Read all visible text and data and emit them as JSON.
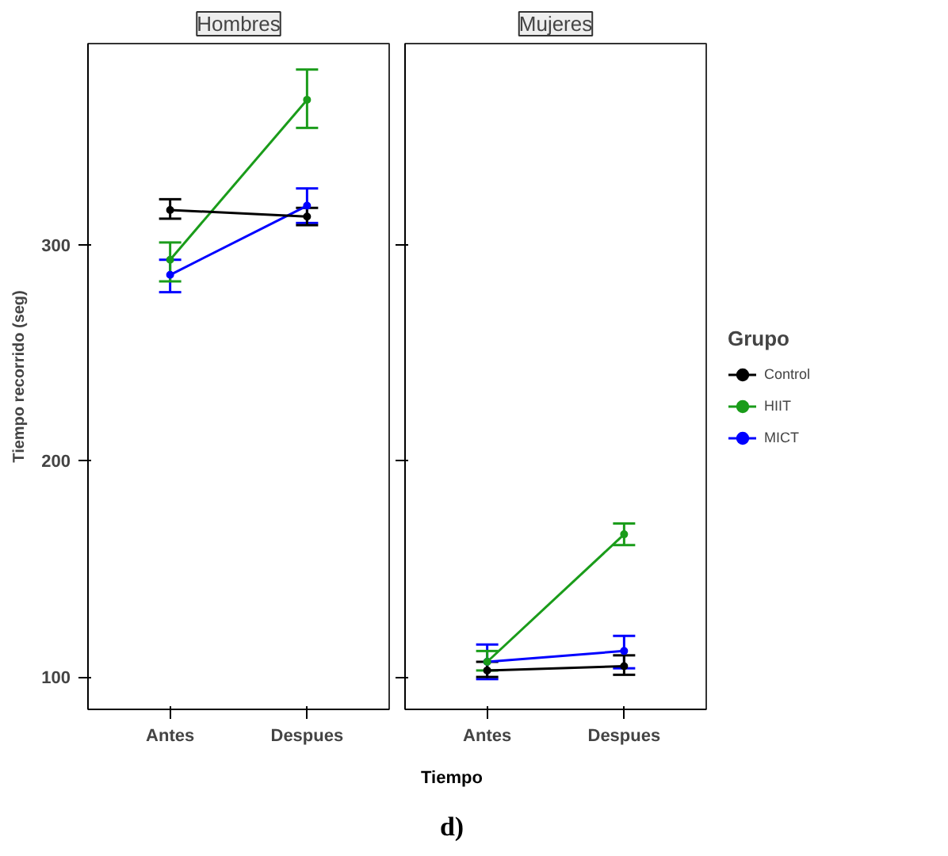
{
  "chart_data": [
    {
      "type": "line",
      "title": "Hombres",
      "ylabel": "Tiempo recorrido (seg)",
      "xlabel": "Tiempo",
      "categories": [
        "Antes",
        "Despues"
      ],
      "ylim": [
        85,
        393
      ],
      "yticks": [
        100,
        200,
        300
      ],
      "marker": "circle",
      "grid": false,
      "legend": "right",
      "legend_title": "Grupo",
      "series": [
        {
          "name": "Control",
          "color": "#000000",
          "values": [
            316,
            313
          ],
          "errors": [
            [
              312,
              321
            ],
            [
              309,
              317
            ]
          ]
        },
        {
          "name": "HIIT",
          "color": "#1a9c1a",
          "values": [
            293,
            367
          ],
          "errors": [
            [
              283,
              301
            ],
            [
              354,
              381
            ]
          ]
        },
        {
          "name": "MICT",
          "color": "#0000ff",
          "values": [
            286,
            318
          ],
          "errors": [
            [
              278,
              293
            ],
            [
              310,
              326
            ]
          ]
        }
      ]
    },
    {
      "type": "line",
      "title": "Mujeres",
      "categories": [
        "Antes",
        "Despues"
      ],
      "ylim": [
        85,
        393
      ],
      "yticks": [
        100,
        200,
        300
      ],
      "tick_labels": "x",
      "marker": "circle",
      "grid": false,
      "annotations": [
        "d)"
      ],
      "series": [
        {
          "color": "#000000",
          "values": [
            103,
            105
          ],
          "errors": [
            [
              100,
              107
            ],
            [
              101,
              110
            ]
          ]
        },
        {
          "color": "#1a9c1a",
          "values": [
            107,
            166
          ],
          "errors": [
            [
              103,
              112
            ],
            [
              161,
              171
            ]
          ]
        },
        {
          "color": "#0000ff",
          "values": [
            107,
            112
          ],
          "errors": [
            [
              99,
              115
            ],
            [
              104,
              119
            ]
          ]
        }
      ]
    }
  ]
}
